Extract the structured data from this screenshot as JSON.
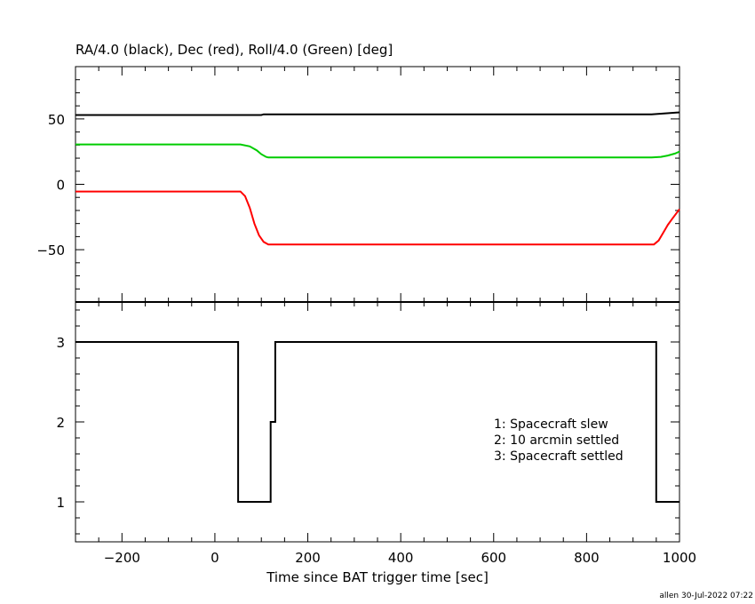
{
  "chart_data": [
    {
      "type": "line",
      "title": "RA/4.0 (black), Dec (red), Roll/4.0 (Green) [deg]",
      "xlim": [
        -300,
        1000
      ],
      "ylim": [
        -90,
        90
      ],
      "yticks": [
        -50,
        0,
        50
      ],
      "series": [
        {
          "color": "#000000",
          "points": [
            [
              -300,
              53
            ],
            [
              50,
              53
            ],
            [
              100,
              53
            ],
            [
              105,
              53.5
            ],
            [
              400,
              53.5
            ],
            [
              940,
              53.5
            ],
            [
              960,
              54
            ],
            [
              980,
              54.5
            ],
            [
              1000,
              55
            ]
          ]
        },
        {
          "color": "#00cc00",
          "points": [
            [
              -300,
              30.5
            ],
            [
              55,
              30.5
            ],
            [
              75,
              29
            ],
            [
              90,
              26
            ],
            [
              100,
              23
            ],
            [
              110,
              21
            ],
            [
              115,
              20.5
            ],
            [
              400,
              20.5
            ],
            [
              940,
              20.5
            ],
            [
              960,
              21
            ],
            [
              975,
              22
            ],
            [
              990,
              23.5
            ],
            [
              1000,
              25
            ]
          ]
        },
        {
          "color": "#ff0000",
          "points": [
            [
              -300,
              -5.5
            ],
            [
              55,
              -5.5
            ],
            [
              65,
              -9
            ],
            [
              75,
              -18
            ],
            [
              85,
              -30
            ],
            [
              95,
              -39
            ],
            [
              105,
              -44
            ],
            [
              115,
              -46
            ],
            [
              400,
              -46
            ],
            [
              945,
              -46
            ],
            [
              955,
              -43
            ],
            [
              965,
              -37
            ],
            [
              975,
              -31
            ],
            [
              985,
              -26
            ],
            [
              1000,
              -19
            ]
          ]
        }
      ]
    },
    {
      "type": "line",
      "xlim": [
        -300,
        1000
      ],
      "ylim": [
        0.5,
        3.5
      ],
      "yticks": [
        1,
        2,
        3
      ],
      "xticks": [
        -200,
        0,
        200,
        400,
        600,
        800,
        1000
      ],
      "xlabel": "Time since BAT trigger time [sec]",
      "series": [
        {
          "color": "#000000",
          "points": [
            [
              -300,
              3
            ],
            [
              50,
              3
            ],
            [
              50,
              1
            ],
            [
              120,
              1
            ],
            [
              120,
              2
            ],
            [
              130,
              2
            ],
            [
              130,
              3
            ],
            [
              950,
              3
            ],
            [
              950,
              1
            ],
            [
              1000,
              1
            ]
          ]
        }
      ],
      "annotations": [
        "1: Spacecraft slew",
        "2: 10 arcmin settled",
        "3: Spacecraft settled"
      ]
    }
  ],
  "footer": "allen 30-Jul-2022 07:22"
}
